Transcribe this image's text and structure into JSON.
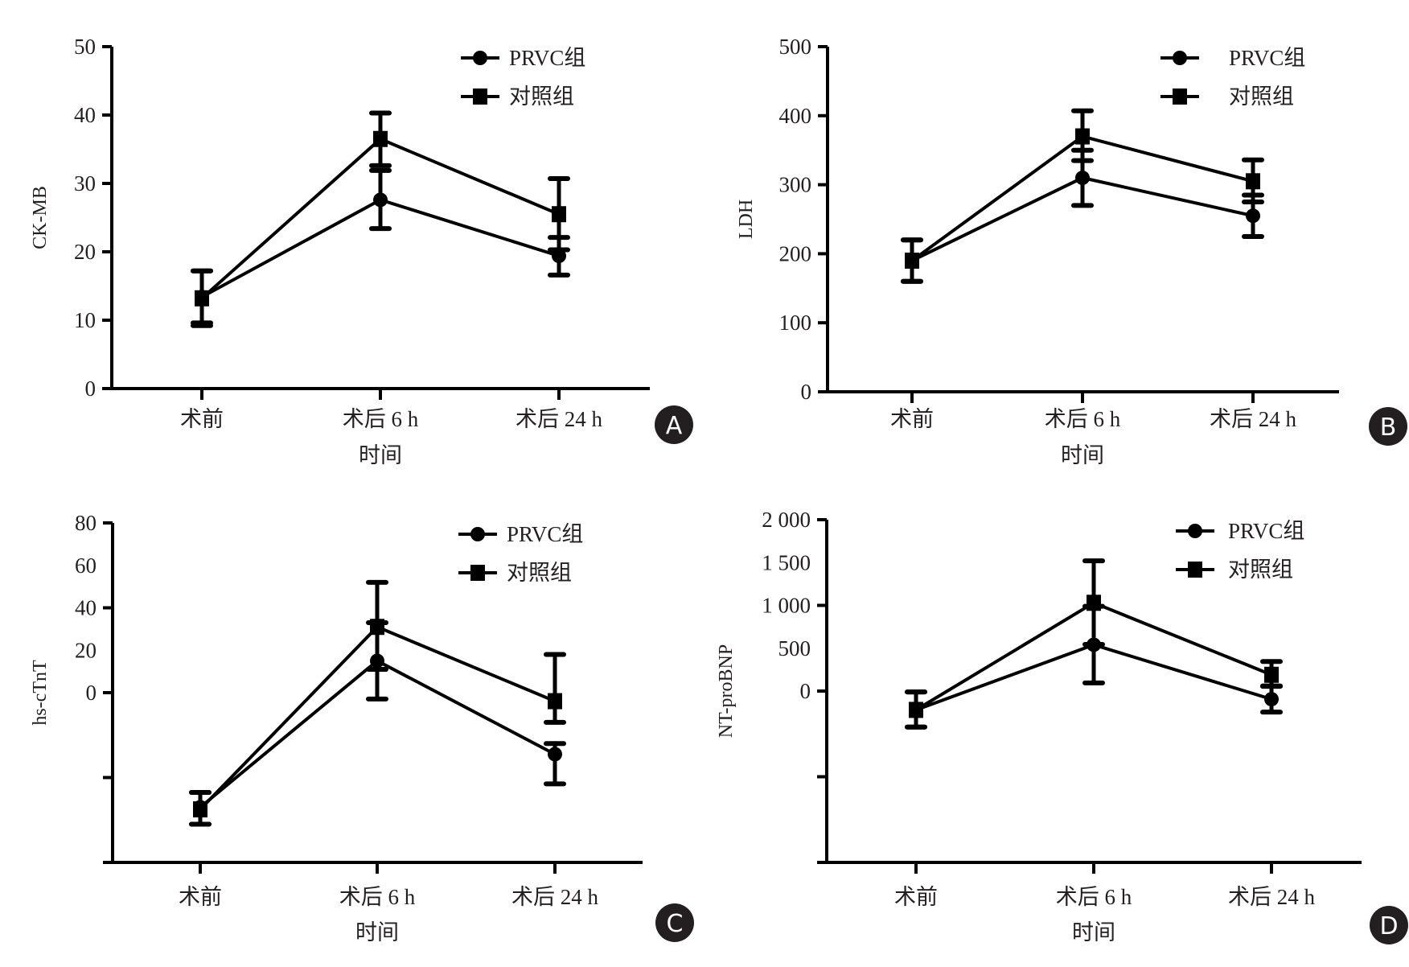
{
  "figure": {
    "x_axis_title": "时间",
    "legend": [
      {
        "label": "PRVC组",
        "marker": "circle"
      },
      {
        "label": "对照组",
        "marker": "square"
      }
    ],
    "colors": {
      "ink": "#000000",
      "text": "#231f20",
      "badge_bg": "#231f20",
      "badge_text": "#ffffff"
    }
  },
  "chart_data": [
    {
      "panel": "A",
      "type": "line",
      "title": "",
      "xlabel": "时间",
      "ylabel": "CK-MB",
      "categories": [
        "术前",
        "术后 6 h",
        "术后 24 h"
      ],
      "ylim": [
        0,
        50
      ],
      "yticks": [
        0,
        10,
        20,
        30,
        40,
        50
      ],
      "ytick_labels": [
        "0",
        "10",
        "20",
        "30",
        "40",
        "50"
      ],
      "grid": false,
      "legend_position": "top-right",
      "series": [
        {
          "name": "PRVC组",
          "marker": "circle",
          "values": [
            13.4,
            27.6,
            19.4
          ],
          "err_low": [
            9.6,
            23.4,
            16.6
          ],
          "err_high": [
            17.2,
            31.9,
            22.1
          ]
        },
        {
          "name": "对照组",
          "marker": "square",
          "values": [
            13.2,
            36.5,
            25.5
          ],
          "err_low": [
            9.2,
            32.6,
            20.3
          ],
          "err_high": [
            17.2,
            40.3,
            30.7
          ]
        }
      ]
    },
    {
      "panel": "B",
      "type": "line",
      "title": "",
      "xlabel": "时间",
      "ylabel": "LDH",
      "categories": [
        "术前",
        "术后 6 h",
        "术后 24 h"
      ],
      "ylim": [
        0,
        500
      ],
      "yticks": [
        0,
        100,
        200,
        300,
        400,
        500
      ],
      "ytick_labels": [
        "0",
        "100",
        "200",
        "300",
        "400",
        "500"
      ],
      "grid": false,
      "legend_position": "top-right",
      "series": [
        {
          "name": "PRVC组",
          "marker": "circle",
          "values": [
            190,
            310,
            255
          ],
          "err_low": [
            160,
            270,
            225
          ],
          "err_high": [
            220,
            350,
            285
          ]
        },
        {
          "name": "对照组",
          "marker": "square",
          "values": [
            190,
            370,
            305
          ],
          "err_low": [
            160,
            335,
            275
          ],
          "err_high": [
            220,
            407,
            336
          ]
        }
      ]
    },
    {
      "panel": "C",
      "type": "line",
      "title": "",
      "xlabel": "时间",
      "ylabel": "hs-cTnT",
      "categories": [
        "术前",
        "术后 6 h",
        "术后 24 h"
      ],
      "ylim": [
        -80,
        80
      ],
      "yticks": [
        -40,
        0,
        40,
        80
      ],
      "ytick_labels": [
        "0",
        "20",
        "40",
        "60",
        "80"
      ],
      "ytick_label_values": [
        0,
        20,
        40,
        60,
        80
      ],
      "grid": false,
      "legend_position": "top-right",
      "series": [
        {
          "name": "PRVC组",
          "marker": "circle",
          "values": [
            -54,
            15,
            -29
          ],
          "err_low": [
            -62,
            -3,
            -43
          ],
          "err_high": [
            -47,
            33,
            -24
          ]
        },
        {
          "name": "对照组",
          "marker": "square",
          "values": [
            -55,
            31,
            -4
          ],
          "err_low": [
            -62,
            11,
            -14
          ],
          "err_high": [
            -47,
            52,
            18
          ]
        }
      ]
    },
    {
      "panel": "D",
      "type": "line",
      "title": "",
      "xlabel": "时间",
      "ylabel": "NT-proBNP",
      "categories": [
        "术前",
        "术后 6 h",
        "术后 24 h"
      ],
      "ylim": [
        -2000,
        2000
      ],
      "yticks": [
        -1000,
        0,
        1000,
        2000
      ],
      "ytick_labels": [
        "0",
        "500",
        "1 000",
        "1 500",
        "2 000"
      ],
      "ytick_label_values": [
        0,
        500,
        1000,
        1500,
        2000
      ],
      "grid": false,
      "legend_position": "top-right",
      "series": [
        {
          "name": "PRVC组",
          "marker": "circle",
          "values": [
            -220,
            540,
            -95
          ],
          "err_low": [
            -420,
            95,
            -245
          ],
          "err_high": [
            -10,
            990,
            55
          ]
        },
        {
          "name": "对照组",
          "marker": "square",
          "values": [
            -220,
            1030,
            190
          ],
          "err_low": [
            -420,
            545,
            60
          ],
          "err_high": [
            -10,
            1520,
            345
          ]
        }
      ]
    }
  ]
}
